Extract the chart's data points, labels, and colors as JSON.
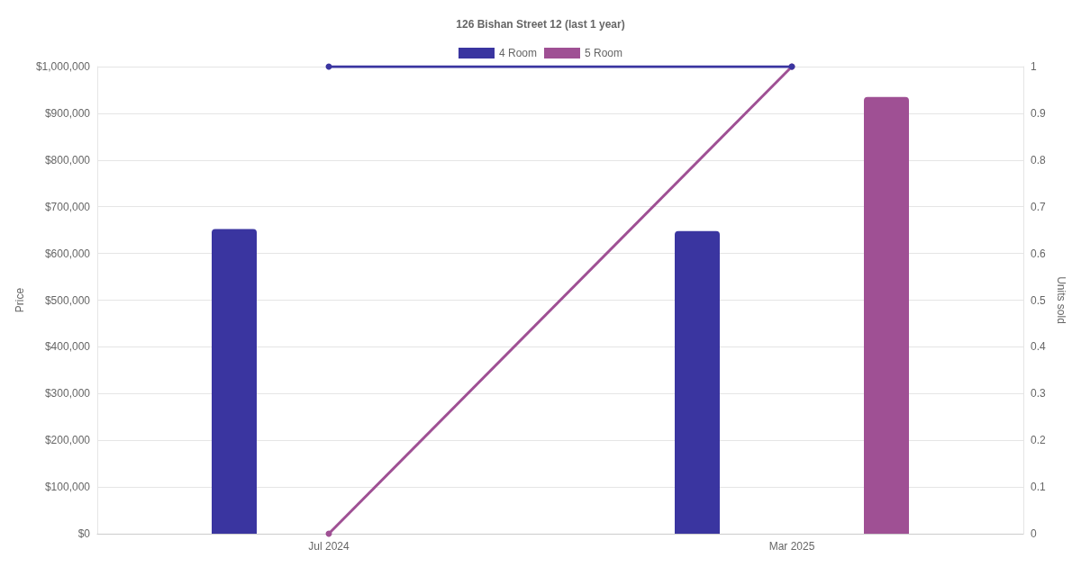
{
  "chart_data": {
    "type": "bar",
    "title": "126 Bishan Street 12 (last 1 year)",
    "ylabel": "Price",
    "y2label": "Units sold",
    "categories": [
      "Jul 2024",
      "Mar 2025"
    ],
    "series": [
      {
        "name": "4 Room",
        "color": "#3a35a0",
        "values": [
          652000,
          648000
        ]
      },
      {
        "name": "5 Room",
        "color": "#9f5094",
        "values": [
          null,
          935000
        ]
      },
      {
        "type": "line",
        "axis": "y2",
        "color": "#3a35a0",
        "values": [
          1,
          1
        ]
      },
      {
        "type": "line",
        "axis": "y2",
        "color": "#9f5094",
        "values": [
          0,
          1
        ]
      }
    ],
    "ylim": [
      0,
      1000000
    ],
    "yticks": [
      {
        "value": 0,
        "label": "$0"
      },
      {
        "value": 100000,
        "label": "$100,000"
      },
      {
        "value": 200000,
        "label": "$200,000"
      },
      {
        "value": 300000,
        "label": "$300,000"
      },
      {
        "value": 400000,
        "label": "$400,000"
      },
      {
        "value": 500000,
        "label": "$500,000"
      },
      {
        "value": 600000,
        "label": "$600,000"
      },
      {
        "value": 700000,
        "label": "$700,000"
      },
      {
        "value": 800000,
        "label": "$800,000"
      },
      {
        "value": 900000,
        "label": "$900,000"
      },
      {
        "value": 1000000,
        "label": "$1,000,000"
      }
    ],
    "y2lim": [
      0,
      1
    ],
    "y2ticks": [
      0,
      0.1,
      0.2,
      0.3,
      0.4,
      0.5,
      0.6,
      0.7,
      0.8,
      0.9,
      1
    ],
    "grid": true,
    "legend": "top",
    "marker": "circle",
    "line_style": "solid"
  }
}
